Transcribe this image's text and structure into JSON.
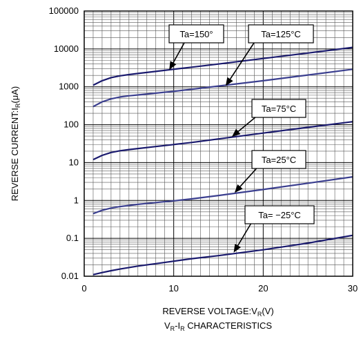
{
  "chart_data": {
    "type": "line",
    "title": "",
    "caption_prefix": "V",
    "caption_sub1": "R",
    "caption_mid": "-I",
    "caption_sub2": "R",
    "caption_suffix": " CHARACTERISTICS",
    "xlabel_prefix": "REVERSE VOLTAGE:V",
    "xlabel_sub": "R",
    "xlabel_suffix": "(V)",
    "ylabel_prefix": "REVERSE CURRENT:I",
    "ylabel_sub": "R",
    "ylabel_suffix": "(μA)",
    "xlim": [
      0,
      30
    ],
    "ylim": [
      0.01,
      100000
    ],
    "y_scale": "log",
    "x_ticks": [
      0,
      10,
      20,
      30
    ],
    "x_tick_labels": [
      "0",
      "10",
      "20",
      "30"
    ],
    "y_ticks": [
      0.01,
      0.1,
      1,
      10,
      100,
      1000,
      10000,
      100000
    ],
    "y_tick_labels": [
      "0.01",
      "0.1",
      "1",
      "10",
      "100",
      "1000",
      "10000",
      "100000"
    ],
    "grid": true,
    "series": [
      {
        "name": "Ta=150°",
        "color": "#1a1a6e",
        "x": [
          1,
          2,
          3,
          4,
          5,
          6,
          8,
          10,
          12,
          15,
          20,
          25,
          30
        ],
        "y": [
          1100,
          1450,
          1750,
          1950,
          2100,
          2250,
          2550,
          2900,
          3300,
          4000,
          5600,
          7800,
          11000
        ]
      },
      {
        "name": "Ta=125°C",
        "color": "#3b3f8f",
        "x": [
          1,
          2,
          3,
          4,
          5,
          6,
          8,
          10,
          12,
          15,
          20,
          25,
          30
        ],
        "y": [
          300,
          400,
          480,
          540,
          580,
          610,
          680,
          760,
          860,
          1050,
          1450,
          2050,
          2900
        ]
      },
      {
        "name": "Ta=75°C",
        "color": "#1a1a6e",
        "x": [
          1,
          2,
          3,
          4,
          5,
          6,
          8,
          10,
          12,
          15,
          20,
          25,
          30
        ],
        "y": [
          12,
          15.5,
          18.5,
          20.5,
          22,
          23.5,
          26.5,
          30,
          34,
          42,
          60,
          85,
          120
        ]
      },
      {
        "name": "Ta=25°C",
        "color": "#3b3f8f",
        "x": [
          1,
          2,
          3,
          4,
          5,
          6,
          8,
          10,
          12,
          15,
          20,
          25,
          30
        ],
        "y": [
          0.45,
          0.55,
          0.63,
          0.69,
          0.74,
          0.79,
          0.88,
          0.98,
          1.1,
          1.35,
          1.95,
          2.85,
          4.2
        ]
      },
      {
        "name": "Ta= −25°C",
        "color": "#1a1a6e",
        "x": [
          1,
          2,
          3,
          4,
          5,
          6,
          8,
          10,
          12,
          15,
          20,
          25,
          30
        ],
        "y": [
          0.011,
          0.0125,
          0.014,
          0.0155,
          0.017,
          0.0185,
          0.0215,
          0.025,
          0.029,
          0.035,
          0.05,
          0.075,
          0.12
        ]
      }
    ],
    "annotations": [
      {
        "text": "Ta=150°",
        "point_to": [
          9.5,
          2800
        ]
      },
      {
        "text": "Ta=125°C",
        "point_to": [
          15.8,
          1050
        ]
      },
      {
        "text": "Ta=75°C",
        "point_to": [
          16.5,
          48
        ]
      },
      {
        "text": "Ta=25°C",
        "point_to": [
          16.8,
          1.6
        ]
      },
      {
        "text": "Ta= −25°C",
        "point_to": [
          16.7,
          0.042
        ]
      }
    ]
  }
}
